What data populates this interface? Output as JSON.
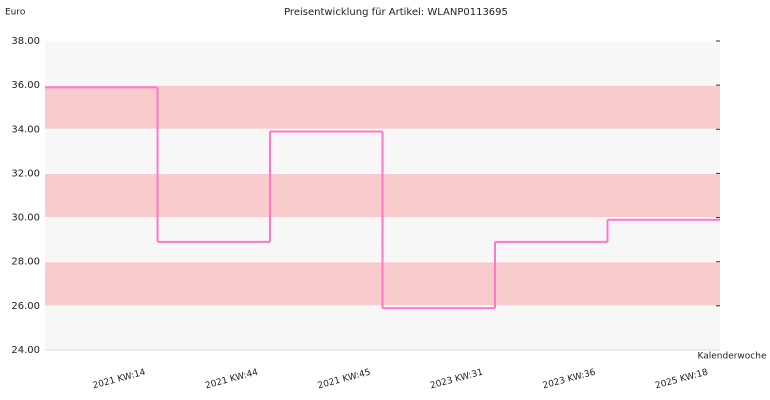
{
  "chart_data": {
    "type": "step",
    "title": "Preisentwicklung für Artikel: WLANP0113695",
    "y_label": "Euro",
    "x_label": "Kalenderwoche",
    "categories": [
      "2021 KW:14",
      "2021 KW:44",
      "2021 KW:45",
      "2023 KW:31",
      "2023 KW:36",
      "2025 KW:18"
    ],
    "values": [
      35.9,
      28.9,
      33.9,
      25.9,
      28.9,
      29.9
    ],
    "color": "#ff77cc",
    "ylim": [
      24,
      38
    ],
    "yticks": [
      {
        "value": 24,
        "label": "24.00"
      },
      {
        "value": 26,
        "label": "26.00"
      },
      {
        "value": 28,
        "label": "28.00"
      },
      {
        "value": 30,
        "label": "30.00"
      },
      {
        "value": 32,
        "label": "32.00"
      },
      {
        "value": 34,
        "label": "34.00"
      },
      {
        "value": 36,
        "label": "36.00"
      },
      {
        "value": 38,
        "label": "38.00"
      }
    ],
    "band_colors": [
      "#f7f7f7",
      "#f8cccc"
    ]
  }
}
